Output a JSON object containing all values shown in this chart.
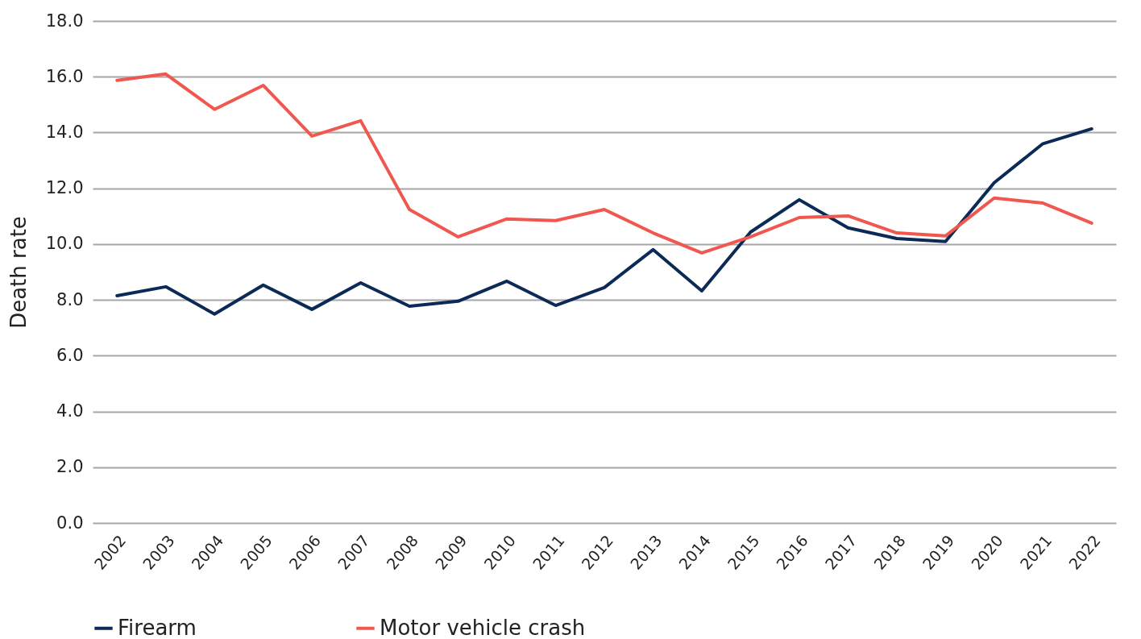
{
  "chart_data": {
    "type": "line",
    "ylabel": "Death rate",
    "categories": [
      "2002",
      "2003",
      "2004",
      "2005",
      "2006",
      "2007",
      "2008",
      "2009",
      "2010",
      "2011",
      "2012",
      "2013",
      "2014",
      "2015",
      "2016",
      "2017",
      "2018",
      "2019",
      "2020",
      "2021",
      "2022"
    ],
    "series": [
      {
        "name": "Firearm",
        "color": "#0b2a55",
        "values": [
          8.15,
          8.47,
          7.49,
          8.53,
          7.66,
          8.61,
          7.77,
          7.95,
          8.67,
          7.8,
          8.44,
          9.8,
          8.32,
          10.43,
          11.59,
          10.58,
          10.2,
          10.09,
          12.2,
          13.6,
          14.13
        ]
      },
      {
        "name": "Motor vehicle crash",
        "color": "#f0584f",
        "values": [
          15.87,
          16.1,
          14.83,
          15.69,
          13.87,
          14.42,
          11.24,
          10.26,
          10.9,
          10.84,
          11.24,
          10.4,
          9.68,
          10.26,
          10.95,
          11.01,
          10.4,
          10.29,
          11.65,
          11.47,
          10.75
        ]
      }
    ],
    "ylim": [
      0,
      18
    ],
    "yticks": [
      {
        "value": 0,
        "label": "0.0"
      },
      {
        "value": 2,
        "label": "2.0"
      },
      {
        "value": 4,
        "label": "4.0"
      },
      {
        "value": 6,
        "label": "6.0"
      },
      {
        "value": 8,
        "label": "8.0"
      },
      {
        "value": 10,
        "label": "10.0"
      },
      {
        "value": 12,
        "label": "12.0"
      },
      {
        "value": 14,
        "label": "14.0"
      },
      {
        "value": 16,
        "label": "16.0"
      },
      {
        "value": 18,
        "label": "18.0"
      }
    ],
    "grid": "y",
    "legend": "bottom",
    "marker": "none",
    "line_style": "solid"
  }
}
